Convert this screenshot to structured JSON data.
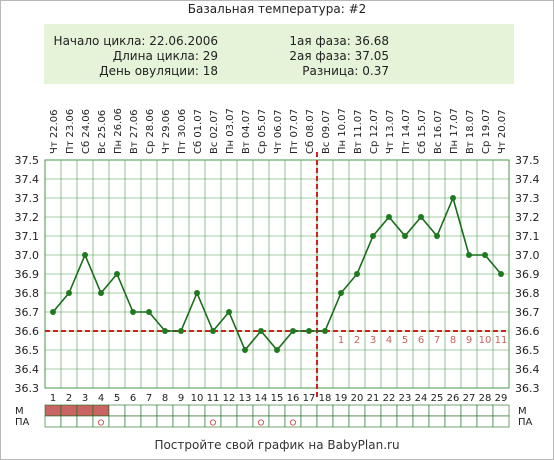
{
  "header": {
    "title": "Базальная температура: #2"
  },
  "info": {
    "cycle_start": "Начало цикла: 22.06.2006",
    "cycle_length": "Длина цикла: 29",
    "ovulation_day": "День овуляции: 18",
    "phase1": "1ая фаза: 36.68",
    "phase2": "2ая фаза: 37.05",
    "difference": "Разница: 0.37"
  },
  "footer": {
    "text": "Постройте свой график на BabyPlan.ru"
  },
  "colors": {
    "line": "#1a6b1a",
    "dot": "#1f7a1f",
    "coverline": "#d02020",
    "marker": "#c86060",
    "period": "#c86464",
    "grid": "#4a9a4a",
    "info_bg": "#e5f3d8"
  },
  "chart_data": {
    "type": "line",
    "x": [
      1,
      2,
      3,
      4,
      5,
      6,
      7,
      8,
      9,
      10,
      11,
      12,
      13,
      14,
      15,
      16,
      17,
      18,
      19,
      20,
      21,
      22,
      23,
      24,
      25,
      26,
      27,
      28,
      29
    ],
    "dates": [
      "Чт 22.06",
      "Пт 23.06",
      "Сб 24.06",
      "Вс 25.06",
      "Пн 26.06",
      "Вт 27.06",
      "Ср 28.06",
      "Чт 29.06",
      "Пт 30.06",
      "Сб 01.07",
      "Вс 02.07",
      "Пн 03.07",
      "Вт 04.07",
      "Ср 05.07",
      "Чт 06.07",
      "Пт 07.07",
      "Сб 08.07",
      "Вс 09.07",
      "Пн 10.07",
      "Вт 11.07",
      "Ср 12.07",
      "Чт 13.07",
      "Пт 14.07",
      "Сб 15.07",
      "Вс 16.07",
      "Пн 17.07",
      "Вт 18.07",
      "Ср 19.07",
      "Чт 20.07"
    ],
    "series": [
      {
        "values": [
          36.7,
          36.8,
          37.0,
          36.8,
          36.9,
          36.7,
          36.7,
          36.6,
          36.6,
          36.8,
          36.6,
          36.7,
          36.5,
          36.6,
          36.5,
          36.6,
          36.6,
          36.6,
          36.8,
          36.9,
          37.1,
          37.2,
          37.1,
          37.2,
          37.1,
          37.3,
          37.0,
          37.0,
          36.9
        ]
      }
    ],
    "ylim": [
      36.3,
      37.5
    ],
    "y_ticks": [
      "37.5",
      "37.4",
      "37.3",
      "37.2",
      "37.1",
      "37.0",
      "36.9",
      "36.8",
      "36.7",
      "36.6",
      "36.5",
      "36.4",
      "36.3"
    ],
    "coverline": 36.6,
    "ovulation_day": 18,
    "phase2_labels": [
      "1",
      "2",
      "3",
      "4",
      "5",
      "6",
      "7",
      "8",
      "9",
      "10",
      "11"
    ],
    "phase2_start_day": 19,
    "row_labels": {
      "m": "М",
      "pa": "ПА"
    },
    "menstruation_days": [
      1,
      2,
      3,
      4
    ],
    "pa_days": [
      4,
      11,
      14,
      16
    ],
    "grid": true
  }
}
